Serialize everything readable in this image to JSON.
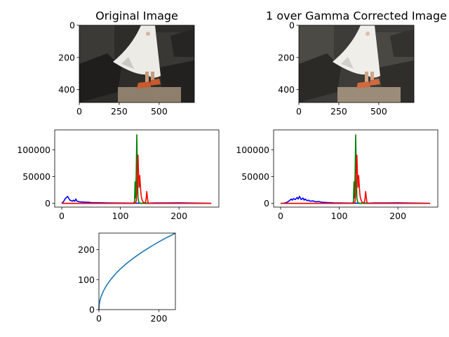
{
  "chart_data": [
    {
      "type": "image",
      "title": "Original Image",
      "xlim": [
        0,
        720
      ],
      "ylim": [
        480,
        0
      ],
      "xticks": [
        0,
        250,
        500
      ],
      "yticks": [
        0,
        200,
        400
      ]
    },
    {
      "type": "image",
      "title": "1 over Gamma Corrected Image",
      "xlim": [
        0,
        720
      ],
      "ylim": [
        480,
        0
      ],
      "xticks": [
        0,
        250,
        500
      ],
      "yticks": [
        0,
        200,
        400
      ]
    },
    {
      "type": "line",
      "title": "",
      "xlim": [
        -12,
        268
      ],
      "ylim": [
        -7000,
        137000
      ],
      "xticks": [
        0,
        100,
        200
      ],
      "yticks": [
        0,
        50000,
        100000
      ],
      "series": [
        {
          "color": "#0000ff",
          "x": [
            0,
            2,
            4,
            6,
            8,
            10,
            12,
            14,
            16,
            18,
            20,
            22,
            24,
            26,
            28,
            30,
            35,
            40,
            45,
            50,
            60,
            80,
            100,
            120,
            125,
            130,
            140,
            160,
            180,
            200,
            220,
            240,
            255
          ],
          "y": [
            0,
            2000,
            5000,
            9000,
            11000,
            13000,
            9000,
            6000,
            5000,
            4000,
            6000,
            4000,
            8000,
            4000,
            3500,
            3000,
            2500,
            2000,
            2000,
            1500,
            1200,
            800,
            600,
            400,
            300,
            300,
            200,
            800,
            900,
            1000,
            600,
            300,
            0
          ]
        },
        {
          "color": "#008000",
          "x": [
            0,
            100,
            120,
            124,
            125,
            126,
            127,
            128,
            129,
            130,
            131,
            132,
            134,
            140,
            255
          ],
          "y": [
            0,
            0,
            0,
            2000,
            40000,
            10000,
            60000,
            128000,
            60000,
            10000,
            4000,
            1000,
            0,
            0,
            0
          ]
        },
        {
          "color": "#ff0000",
          "x": [
            0,
            100,
            124,
            126,
            127,
            128,
            129,
            130,
            131,
            132,
            133,
            134,
            135,
            136,
            138,
            140,
            143,
            144,
            145,
            146,
            147,
            148,
            150,
            160,
            200,
            255
          ],
          "y": [
            0,
            0,
            0,
            1000,
            5000,
            20000,
            60000,
            90000,
            55000,
            30000,
            52000,
            35000,
            18000,
            10000,
            4000,
            1000,
            2000,
            10000,
            22000,
            12000,
            3000,
            500,
            0,
            0,
            0,
            0
          ]
        }
      ]
    },
    {
      "type": "line",
      "title": "",
      "xlim": [
        -12,
        268
      ],
      "ylim": [
        -7000,
        137000
      ],
      "xticks": [
        0,
        100,
        200
      ],
      "yticks": [
        0,
        50000,
        100000
      ],
      "series": [
        {
          "color": "#0000ff",
          "x": [
            0,
            5,
            10,
            12,
            15,
            18,
            20,
            22,
            25,
            28,
            30,
            32,
            35,
            38,
            40,
            42,
            45,
            48,
            50,
            55,
            60,
            65,
            70,
            80,
            90,
            100,
            110,
            120,
            125,
            130,
            140,
            160,
            180,
            200,
            220,
            240,
            255
          ],
          "y": [
            0,
            200,
            1500,
            3000,
            5000,
            8000,
            6000,
            9000,
            7000,
            11000,
            8000,
            13000,
            7000,
            10000,
            6000,
            8000,
            5000,
            6000,
            4000,
            4500,
            3000,
            3500,
            2000,
            1500,
            1000,
            800,
            600,
            400,
            300,
            300,
            200,
            800,
            900,
            1000,
            600,
            300,
            0
          ]
        },
        {
          "color": "#008000",
          "x": [
            0,
            100,
            120,
            124,
            125,
            126,
            127,
            128,
            129,
            130,
            131,
            132,
            134,
            140,
            255
          ],
          "y": [
            0,
            0,
            0,
            2000,
            40000,
            10000,
            60000,
            128000,
            60000,
            10000,
            4000,
            1000,
            0,
            0,
            0
          ]
        },
        {
          "color": "#ff0000",
          "x": [
            0,
            100,
            124,
            126,
            127,
            128,
            129,
            130,
            131,
            132,
            133,
            134,
            135,
            136,
            138,
            140,
            143,
            144,
            145,
            146,
            147,
            148,
            150,
            160,
            200,
            255
          ],
          "y": [
            0,
            0,
            0,
            1000,
            5000,
            20000,
            60000,
            90000,
            55000,
            30000,
            52000,
            35000,
            18000,
            10000,
            4000,
            1000,
            2000,
            10000,
            22000,
            12000,
            3000,
            500,
            0,
            0,
            0,
            0
          ]
        }
      ]
    },
    {
      "type": "line",
      "title": "",
      "xlim": [
        0,
        255
      ],
      "ylim": [
        0,
        255
      ],
      "xticks": [
        0,
        200
      ],
      "yticks": [
        0,
        100,
        200
      ],
      "series": [
        {
          "color": "#1f77b4",
          "x": [
            0,
            1,
            2,
            4,
            6,
            8,
            10,
            15,
            20,
            25,
            30,
            40,
            50,
            60,
            70,
            80,
            90,
            100,
            120,
            140,
            160,
            180,
            200,
            220,
            240,
            255
          ],
          "y": [
            0,
            16,
            23,
            32,
            39,
            45,
            50,
            62,
            71,
            80,
            87,
            101,
            113,
            124,
            134,
            143,
            152,
            160,
            175,
            189,
            202,
            214,
            226,
            237,
            247,
            255
          ]
        }
      ]
    }
  ]
}
